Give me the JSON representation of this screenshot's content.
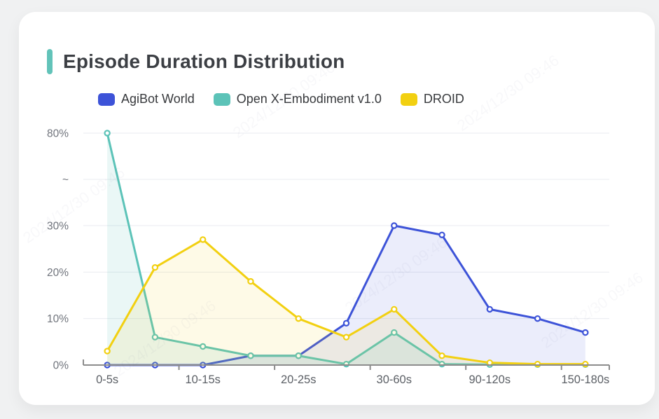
{
  "header": {
    "title": "Episode Duration Distribution",
    "accent_color": "#62c3b9"
  },
  "watermark": {
    "text": "2024/12/30 09:46"
  },
  "colors": {
    "page_background": "#f0f1f2",
    "card_background": "#ffffff",
    "gridline": "#e9ebf0",
    "axis_line": "#8c8c8c",
    "y_label": "#70747c",
    "x_label": "#5c6066"
  },
  "chart_data": {
    "type": "line",
    "title": "Episode Duration Distribution",
    "area_fill": true,
    "grid": true,
    "legend_position": "top",
    "categories": [
      "0-5s",
      "",
      "10-15s",
      "",
      "20-25s",
      "",
      "30-60s",
      "",
      "90-120s",
      "",
      "150-180s"
    ],
    "x_tick_labels_visible": [
      "0-5s",
      "10-15s",
      "20-25s",
      "30-60s",
      "90-120s",
      "150-180s"
    ],
    "series": [
      {
        "name": "AgiBot World",
        "color": "#3d53d8",
        "fill": "rgba(61,83,216,0.10)",
        "values": [
          0,
          0,
          0,
          2,
          2,
          9,
          30,
          28,
          12,
          10,
          7
        ]
      },
      {
        "name": "Open X-Embodiment v1.0",
        "color": "#5cc3b8",
        "fill": "rgba(92,195,184,0.13)",
        "values": [
          80,
          6,
          4,
          2,
          2,
          0.2,
          7,
          0.2,
          0.1,
          0.1,
          0.1
        ]
      },
      {
        "name": "DROID",
        "color": "#f2d011",
        "fill": "rgba(242,208,17,0.10)",
        "values": [
          3,
          21,
          27,
          18,
          10,
          6,
          12,
          2,
          0.5,
          0.2,
          0.2
        ]
      }
    ],
    "y_axis": {
      "unit": "%",
      "ticks": [
        {
          "label": "0%",
          "v": 0
        },
        {
          "label": "10%",
          "v": 10
        },
        {
          "label": "20%",
          "v": 20
        },
        {
          "label": "30%",
          "v": 30
        },
        {
          "label": "~",
          "v": "break"
        },
        {
          "label": "80%",
          "v": 80
        }
      ],
      "axis_break_between": [
        30,
        80
      ]
    }
  }
}
